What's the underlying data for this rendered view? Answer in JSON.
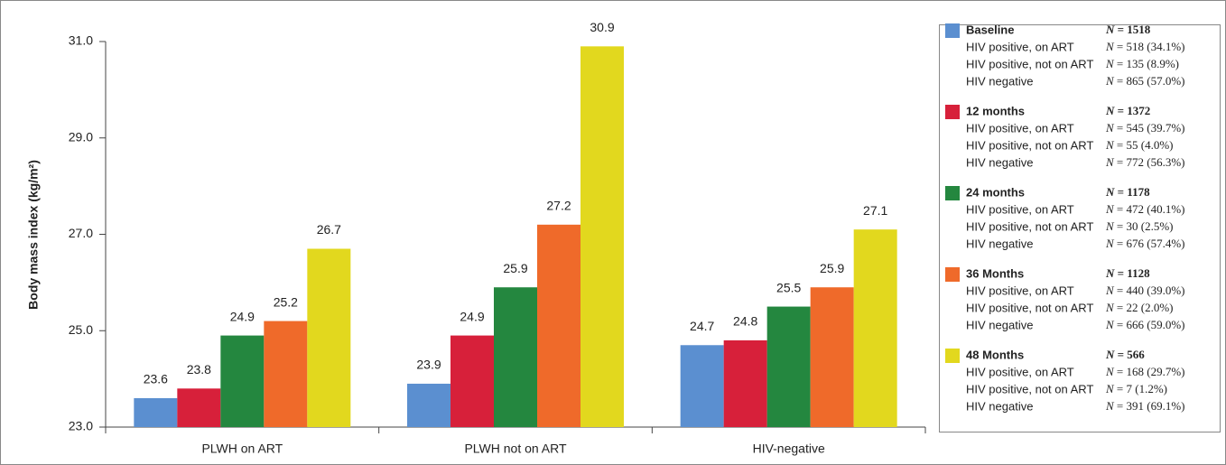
{
  "chart_data": {
    "type": "bar",
    "y_label": "Body mass index (kg/m²)",
    "categories": [
      "PLWH on ART",
      "PLWH not on ART",
      "HIV-negative"
    ],
    "series": [
      {
        "name": "Baseline",
        "color": "#5b8fd0",
        "values": [
          23.6,
          23.9,
          24.7
        ]
      },
      {
        "name": "12 months",
        "color": "#d7203a",
        "values": [
          23.8,
          24.9,
          24.8
        ]
      },
      {
        "name": "24 months",
        "color": "#24873f",
        "values": [
          24.9,
          25.9,
          25.5
        ]
      },
      {
        "name": "36 Months",
        "color": "#ef6a2a",
        "values": [
          25.2,
          27.2,
          25.9
        ]
      },
      {
        "name": "48 Months",
        "color": "#e2d81e",
        "values": [
          26.7,
          30.9,
          27.1
        ]
      }
    ],
    "ylim": [
      23,
      31
    ],
    "yticks": [
      {
        "value": 23,
        "label": "23.0"
      },
      {
        "value": 25,
        "label": "25.0"
      },
      {
        "value": 27,
        "label": "27.0"
      },
      {
        "value": 29,
        "label": "29.0"
      },
      {
        "value": 31,
        "label": "31.0"
      }
    ],
    "legend_details": [
      {
        "total": "N = 1518",
        "rows": [
          {
            "label": "HIV positive, on ART",
            "n": "N = 518 (34.1%)"
          },
          {
            "label": "HIV positive, not on ART",
            "n": "N = 135 (8.9%)"
          },
          {
            "label": "HIV negative",
            "n": "N = 865 (57.0%)"
          }
        ]
      },
      {
        "total": "N = 1372",
        "rows": [
          {
            "label": "HIV positive, on ART",
            "n": "N = 545 (39.7%)"
          },
          {
            "label": "HIV positive, not on ART",
            "n": "N = 55 (4.0%)"
          },
          {
            "label": "HIV negative",
            "n": "N = 772 (56.3%)"
          }
        ]
      },
      {
        "total": "N = 1178",
        "rows": [
          {
            "label": "HIV positive, on ART",
            "n": "N = 472 (40.1%)"
          },
          {
            "label": "HIV positive, not on ART",
            "n": "N = 30 (2.5%)"
          },
          {
            "label": "HIV negative",
            "n": "N = 676 (57.4%)"
          }
        ]
      },
      {
        "total": "N = 1128",
        "rows": [
          {
            "label": "HIV positive, on ART",
            "n": "N = 440 (39.0%)"
          },
          {
            "label": "HIV positive, not on ART",
            "n": "N = 22 (2.0%)"
          },
          {
            "label": "HIV negative",
            "n": "N = 666 (59.0%)"
          }
        ]
      },
      {
        "total": "N = 566",
        "rows": [
          {
            "label": "HIV positive, on ART",
            "n": "N = 168 (29.7%)"
          },
          {
            "label": "HIV positive, not on ART",
            "n": "N = 7 (1.2%)"
          },
          {
            "label": "HIV negative",
            "n": "N = 391 (69.1%)"
          }
        ]
      }
    ]
  }
}
